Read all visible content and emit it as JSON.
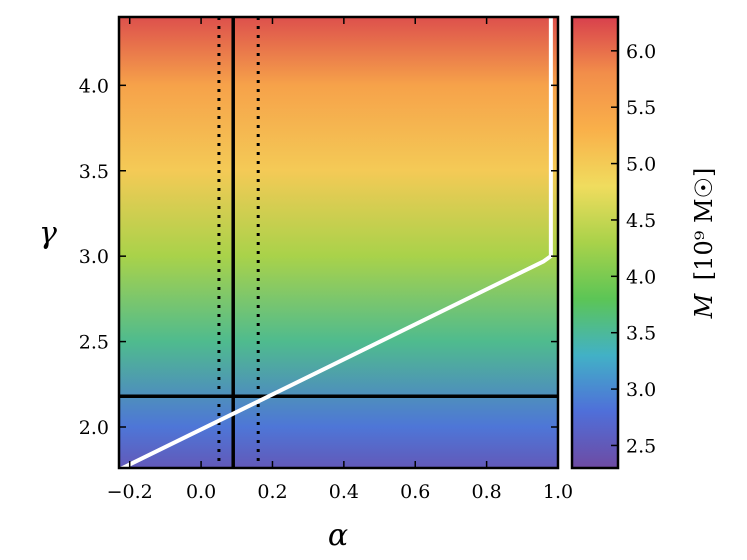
{
  "chart_data": {
    "type": "heatmap",
    "title": "",
    "xlabel": "α",
    "ylabel": "γ",
    "xlim": [
      -0.23,
      1.0
    ],
    "ylim": [
      1.76,
      4.4
    ],
    "x_ticks": [
      -0.2,
      0.0,
      0.2,
      0.4,
      0.6,
      0.8,
      1.0
    ],
    "x_tick_labels": [
      "−0.2",
      "0.0",
      "0.2",
      "0.4",
      "0.6",
      "0.8",
      "1.0"
    ],
    "y_ticks": [
      2.0,
      2.5,
      3.0,
      3.5,
      4.0
    ],
    "y_tick_labels": [
      "2.0",
      "2.5",
      "3.0",
      "3.5",
      "4.0"
    ],
    "grid": false,
    "colorbar": {
      "label_italic": "M",
      "label_rest": "[10⁹ M☉]",
      "range": [
        2.3,
        6.3
      ],
      "ticks": [
        2.5,
        3.0,
        3.5,
        4.0,
        4.5,
        5.0,
        5.5,
        6.0
      ],
      "tick_labels": [
        "2.5",
        "3.0",
        "3.5",
        "4.0",
        "4.5",
        "5.0",
        "5.5",
        "6.0"
      ],
      "colormap": [
        "#6e4ba3",
        "#4f6fd9",
        "#42b1c6",
        "#5cc556",
        "#a9d24a",
        "#f0dc5e",
        "#f9b04a",
        "#f28e4a",
        "#d8404d"
      ]
    },
    "heatmap_gradient": [
      {
        "gamma": 1.76,
        "value": 2.5
      },
      {
        "gamma": 2.0,
        "value": 2.85
      },
      {
        "gamma": 2.5,
        "value": 3.55
      },
      {
        "gamma": 3.0,
        "value": 4.3
      },
      {
        "gamma": 3.5,
        "value": 5.0
      },
      {
        "gamma": 4.0,
        "value": 5.5
      },
      {
        "gamma": 4.4,
        "value": 6.2
      }
    ],
    "boundary_line": {
      "color": "#ffffff",
      "points": [
        [
          -0.23,
          1.75
        ],
        [
          0.96,
          2.97
        ],
        [
          0.98,
          3.0
        ],
        [
          0.98,
          4.4
        ]
      ]
    },
    "reference_lines": {
      "vertical_solid": 0.09,
      "vertical_dotted": [
        0.05,
        0.16
      ],
      "horizontal_solid": 2.18
    }
  }
}
